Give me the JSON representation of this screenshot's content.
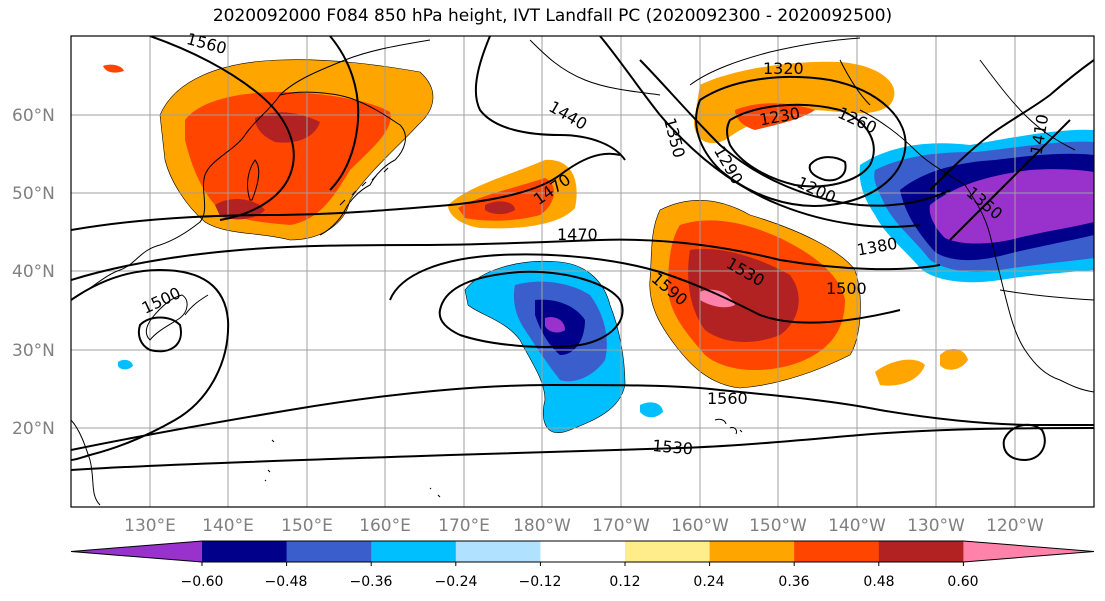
{
  "title": "2020092000 F084 850 hPa height, IVT Landfall PC (2020092300 - 2020092500)",
  "lat_labels": [
    "60°N",
    "50°N",
    "40°N",
    "30°N",
    "20°N"
  ],
  "lon_labels": [
    "130°E",
    "140°E",
    "150°E",
    "160°E",
    "170°E",
    "180°W",
    "170°W",
    "160°W",
    "150°W",
    "140°W",
    "130°W",
    "120°W"
  ],
  "contour_labels": [
    "1560",
    "1440",
    "1470",
    "1470",
    "1320",
    "1350",
    "1290",
    "1230",
    "1260",
    "1200",
    "1380",
    "1500",
    "1530",
    "1590",
    "1500",
    "1560",
    "1530",
    "1410",
    "1350"
  ],
  "colorbar": {
    "colors": [
      "#9932cc",
      "#00008b",
      "#3a5fcd",
      "#00bfff",
      "#b0e2ff",
      "#ffffff",
      "#ffec8b",
      "#ffa500",
      "#ff4500",
      "#b22222",
      "#ff82ab"
    ],
    "ticks": [
      "−0.60",
      "−0.48",
      "−0.36",
      "−0.24",
      "−0.12",
      "0.12",
      "0.24",
      "0.36",
      "0.48",
      "0.60"
    ]
  }
}
